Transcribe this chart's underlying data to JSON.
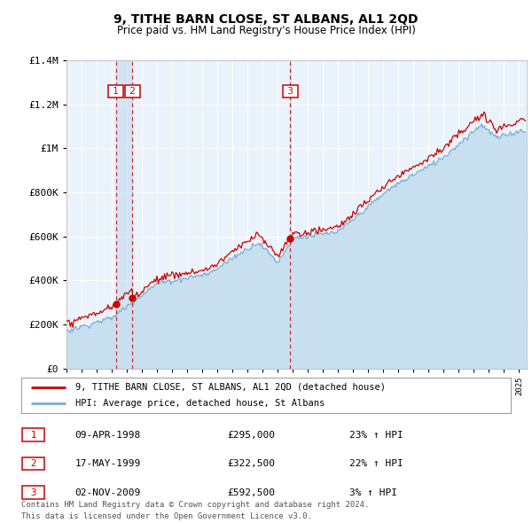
{
  "title": "9, TITHE BARN CLOSE, ST ALBANS, AL1 2QD",
  "subtitle": "Price paid vs. HM Land Registry's House Price Index (HPI)",
  "legend_line1": "9, TITHE BARN CLOSE, ST ALBANS, AL1 2QD (detached house)",
  "legend_line2": "HPI: Average price, detached house, St Albans",
  "footnote1": "Contains HM Land Registry data © Crown copyright and database right 2024.",
  "footnote2": "This data is licensed under the Open Government Licence v3.0.",
  "transactions": [
    {
      "num": 1,
      "date": "09-APR-1998",
      "price": 295000,
      "pct": "23%",
      "year": 1998.27
    },
    {
      "num": 2,
      "date": "17-MAY-1999",
      "price": 322500,
      "pct": "22%",
      "year": 1999.37
    },
    {
      "num": 3,
      "date": "02-NOV-2009",
      "price": 592500,
      "pct": "3%",
      "year": 2009.83
    }
  ],
  "hpi_color": "#7bafd4",
  "hpi_fill": "#c8dff0",
  "price_color": "#cc0000",
  "vline_color": "#cc0000",
  "marker_color": "#cc0000",
  "box_color": "#cc0000",
  "plot_bg": "#eaf2fb",
  "grid_color": "#ffffff",
  "ylim": [
    0,
    1400000
  ],
  "yticks": [
    0,
    200000,
    400000,
    600000,
    800000,
    1000000,
    1200000,
    1400000
  ],
  "ytick_labels": [
    "£0",
    "£200K",
    "£400K",
    "£600K",
    "£800K",
    "£1M",
    "£1.2M",
    "£1.4M"
  ],
  "xstart": 1995.0,
  "xend": 2025.5
}
